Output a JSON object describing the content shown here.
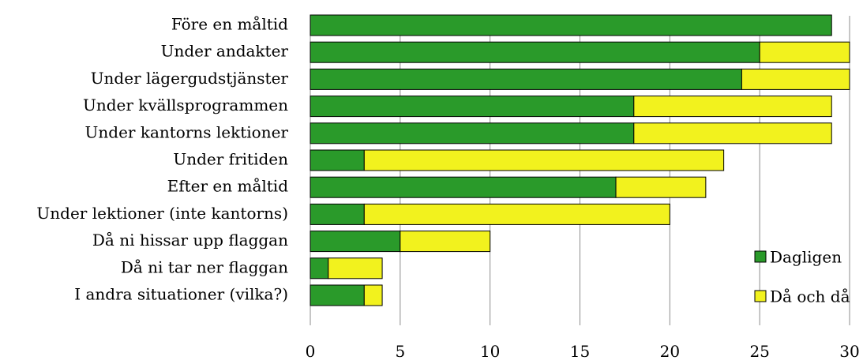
{
  "chart_data": {
    "type": "bar",
    "orientation": "horizontal",
    "stacked": true,
    "categories": [
      "Före en måltid",
      "Under andakter",
      "Under lägergudstjänster",
      "Under kvällsprogrammen",
      "Under kantorns lektioner",
      "Under fritiden",
      "Efter en måltid",
      "Under lektioner (inte kantorns)",
      "Då ni hissar upp flaggan",
      "Då ni tar ner flaggan",
      "I andra situationer (vilka?)"
    ],
    "series": [
      {
        "name": "Dagligen",
        "color": "#2a9a2a",
        "values": [
          29,
          25,
          24,
          18,
          18,
          3,
          17,
          3,
          5,
          1,
          3
        ]
      },
      {
        "name": "Då och då",
        "color": "#f2f21e",
        "values": [
          0,
          5,
          6,
          11,
          11,
          20,
          5,
          17,
          5,
          3,
          1
        ]
      }
    ],
    "xlim": [
      0,
      30
    ],
    "xticks": [
      0,
      5,
      10,
      15,
      20,
      25,
      30
    ],
    "grid": true,
    "legend_position": "right"
  }
}
